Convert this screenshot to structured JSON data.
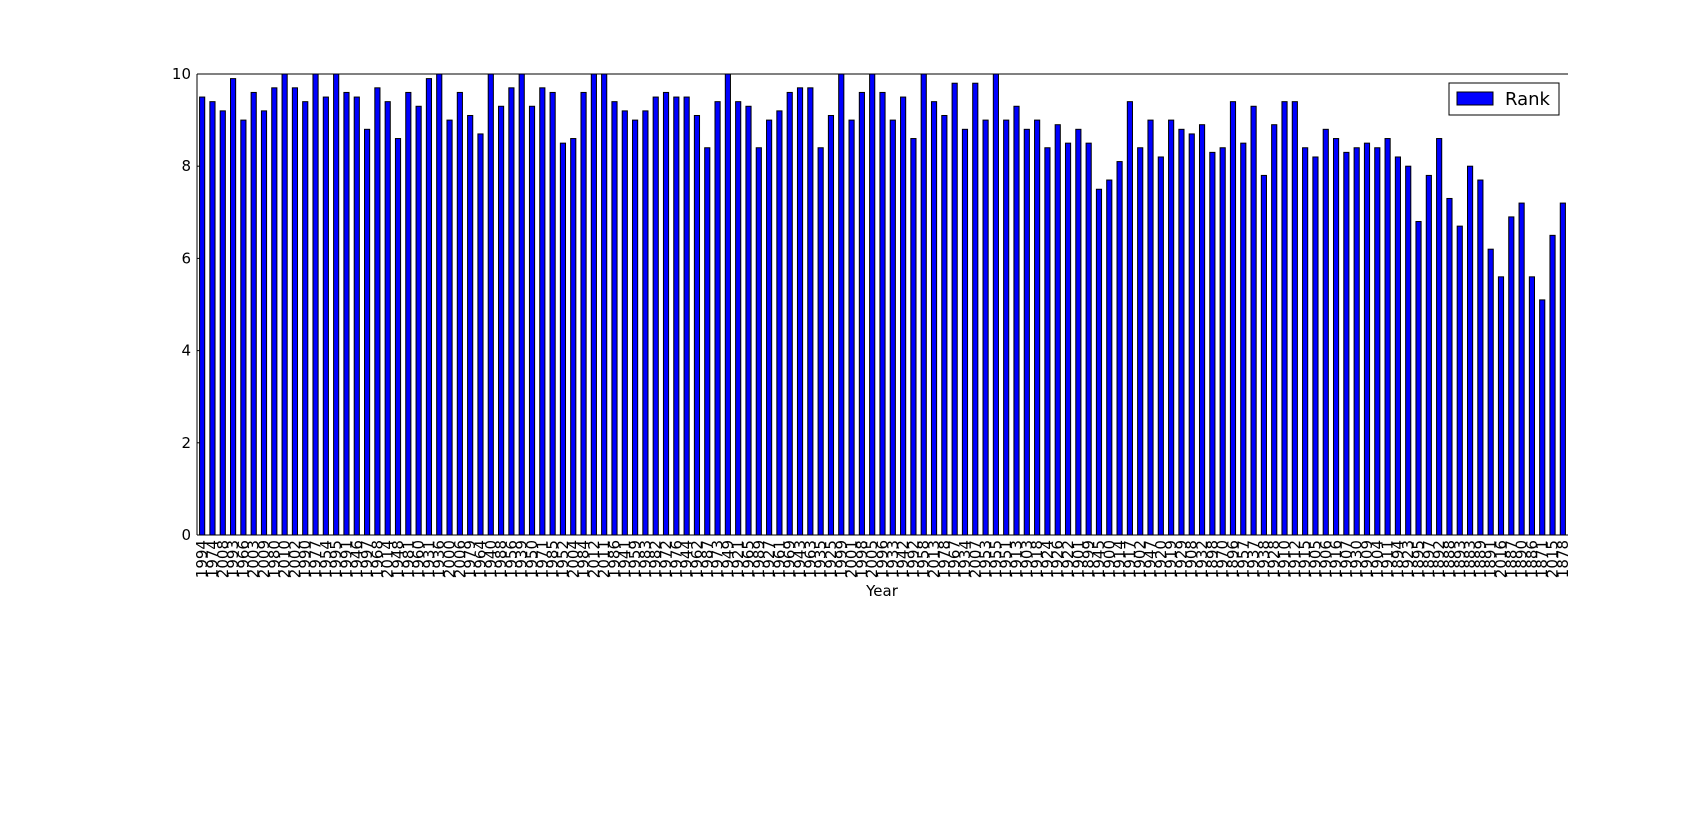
{
  "chart_data": {
    "type": "bar",
    "categories": [
      "1994",
      "1974",
      "2008",
      "1993",
      "1966",
      "2003",
      "2009",
      "1980",
      "2010",
      "2002",
      "1990",
      "1977",
      "1954",
      "1995",
      "1991",
      "1946",
      "1997",
      "1968",
      "2014",
      "1948",
      "1981",
      "1960",
      "1931",
      "1936",
      "2000",
      "2006",
      "1979",
      "1964",
      "1940",
      "1988",
      "1956",
      "1939",
      "1950",
      "1971",
      "1985",
      "1952",
      "2004",
      "1984",
      "2012",
      "2011",
      "1986",
      "1941",
      "1959",
      "1983",
      "1982",
      "1972",
      "1976",
      "1944",
      "1962",
      "1987",
      "1973",
      "1949",
      "1921",
      "1965",
      "1989",
      "1927",
      "1961",
      "1969",
      "1943",
      "1963",
      "1935",
      "1925",
      "1999",
      "2001",
      "1998",
      "2005",
      "1996",
      "1933",
      "1942",
      "1992",
      "1958",
      "2013",
      "1978",
      "1967",
      "1934",
      "2007",
      "1953",
      "1955",
      "1951",
      "1913",
      "1903",
      "1918",
      "1924",
      "1926",
      "1922",
      "1901",
      "1899",
      "1945",
      "1900",
      "1914",
      "1917",
      "1902",
      "1947",
      "1920",
      "1919",
      "1929",
      "1908",
      "1932",
      "1898",
      "1970",
      "1896",
      "1957",
      "1937",
      "1938",
      "1928",
      "1910",
      "1912",
      "1915",
      "1905",
      "1906",
      "1916",
      "1907",
      "1930",
      "1909",
      "1904",
      "1911",
      "1894",
      "1923",
      "1895",
      "1897",
      "1892",
      "1888",
      "1893",
      "1883",
      "1889",
      "1891",
      "2016",
      "1887",
      "1890",
      "1886",
      "1871",
      "2015",
      "1878"
    ],
    "series": [
      {
        "name": "Rank",
        "color": "#0000ff",
        "values": [
          9.5,
          9.4,
          9.2,
          9.9,
          9.0,
          9.6,
          9.2,
          9.7,
          10,
          9.7,
          9.4,
          10,
          9.5,
          10,
          9.6,
          9.5,
          8.8,
          9.7,
          9.4,
          8.6,
          9.6,
          9.3,
          9.9,
          10,
          9.0,
          9.6,
          9.1,
          8.7,
          10,
          9.3,
          9.7,
          10,
          9.3,
          9.7,
          9.6,
          8.5,
          8.6,
          9.6,
          10,
          10,
          9.4,
          9.2,
          9.0,
          9.2,
          9.5,
          9.6,
          9.5,
          9.5,
          9.1,
          8.4,
          9.4,
          10,
          9.4,
          9.3,
          8.4,
          9.0,
          9.2,
          9.6,
          9.7,
          9.7,
          8.4,
          9.1,
          10,
          9.0,
          9.6,
          10,
          9.6,
          9.0,
          9.5,
          8.6,
          10,
          9.4,
          9.1,
          9.8,
          8.8,
          9.8,
          9.0,
          10,
          9.0,
          9.3,
          8.8,
          9.0,
          8.4,
          8.9,
          8.5,
          8.8,
          8.5,
          7.5,
          7.7,
          8.1,
          9.4,
          8.4,
          9.0,
          8.2,
          9.0,
          8.8,
          8.7,
          8.9,
          8.3,
          8.4,
          9.4,
          8.5,
          9.3,
          7.8,
          8.9,
          9.4,
          9.4,
          8.4,
          8.2,
          8.8,
          8.6,
          8.3,
          8.4,
          8.5,
          8.4,
          8.6,
          8.2,
          8.0,
          6.8,
          7.8,
          8.6,
          7.3,
          6.7,
          8.0,
          7.7,
          6.2,
          5.6,
          6.9,
          7.2,
          5.6,
          5.1,
          6.5,
          7.2
        ]
      }
    ],
    "xlabel": "Year",
    "ylim": [
      0,
      10
    ],
    "yticks": [
      0,
      2,
      4,
      6,
      8,
      10
    ],
    "legend": "upper right"
  }
}
